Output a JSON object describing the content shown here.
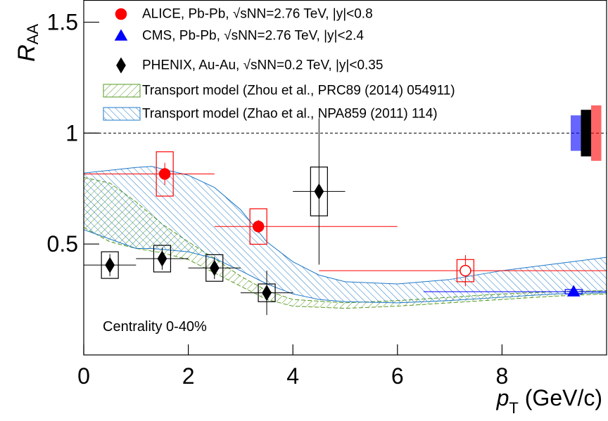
{
  "chart_data": {
    "type": "scatter",
    "x_label": {
      "text": "p",
      "subscript": "T",
      "suffix": " (GeV/c)"
    },
    "y_label": {
      "text": "R",
      "subscript": "AA"
    },
    "xlim": [
      0,
      10
    ],
    "ylim": [
      0,
      1.6
    ],
    "xticks": [
      0,
      2,
      4,
      6,
      8
    ],
    "yticks": [
      0.5,
      1,
      1.5
    ],
    "reference_line": 1,
    "annotation": "Centrality 0-40%",
    "legend": "top-left",
    "series": [
      {
        "name": "ALICE, Pb-Pb, √sNN=2.76 TeV, |y|<0.8",
        "color": "#ff0000",
        "marker": "circle",
        "x": [
          1.55,
          3.34,
          7.3
        ],
        "values": [
          0.816,
          0.579,
          0.38
        ],
        "x_low": [
          0,
          2.5,
          4.5
        ],
        "x_high": [
          2.5,
          6,
          10
        ],
        "stat_err": [
          0.05,
          0.03,
          0.07
        ],
        "syst_err": [
          0.1,
          0.08,
          0.05
        ],
        "filled": [
          true,
          true,
          false
        ],
        "global_err": 0.125
      },
      {
        "name": "CMS, Pb-Pb, √sNN=2.76 TeV, |y|<2.4",
        "color": "#0000ff",
        "marker": "triangle",
        "x": [
          9.37
        ],
        "values": [
          0.285
        ],
        "x_low": [
          6.5
        ],
        "x_high": [
          10
        ],
        "stat_err": [
          0.02
        ],
        "syst_err": [
          0.01
        ],
        "filled": [
          true
        ],
        "global_err": 0.08
      },
      {
        "name": "PHENIX, Au-Au, √sNN=0.2 TeV, |y|<0.35",
        "color": "#000000",
        "marker": "diamond",
        "x": [
          0.5,
          1.5,
          2.5,
          3.5,
          4.5
        ],
        "values": [
          0.405,
          0.434,
          0.392,
          0.28,
          0.737
        ],
        "x_low": [
          0,
          1,
          2,
          3,
          4
        ],
        "x_high": [
          1,
          2,
          3,
          4,
          5
        ],
        "stat_err": [
          0.05,
          0.05,
          0.05,
          0.1,
          0.33
        ],
        "syst_err": [
          0.06,
          0.06,
          0.06,
          0.04,
          0.11
        ],
        "filled": [
          true,
          true,
          true,
          true,
          true
        ],
        "global_err": 0.105
      }
    ],
    "bands": [
      {
        "name": "Transport model (Zhou et al., PRC89 (2014) 054911)",
        "color": "#559922",
        "x": [
          0,
          0.5,
          1,
          1.5,
          2,
          2.5,
          3,
          3.5,
          4,
          5,
          6,
          7,
          8,
          9,
          10
        ],
        "upper": [
          0.8,
          0.775,
          0.69,
          0.59,
          0.51,
          0.435,
          0.355,
          0.29,
          0.25,
          0.235,
          0.245,
          0.26,
          0.275,
          0.285,
          0.29
        ],
        "lower": [
          0.575,
          0.51,
          0.48,
          0.46,
          0.43,
          0.37,
          0.31,
          0.25,
          0.22,
          0.21,
          0.22,
          0.235,
          0.25,
          0.265,
          0.275
        ]
      },
      {
        "name": "Transport model (Zhao et al., NPA859 (2011) 114)",
        "color": "#1f78c8",
        "x": [
          0,
          1,
          1.3,
          2,
          2.5,
          3,
          3.5,
          4,
          4.5,
          5,
          6,
          7,
          8,
          9,
          10
        ],
        "upper": [
          0.82,
          0.845,
          0.85,
          0.81,
          0.755,
          0.655,
          0.51,
          0.42,
          0.36,
          0.33,
          0.32,
          0.34,
          0.38,
          0.41,
          0.44
        ],
        "lower": [
          0.565,
          0.48,
          0.48,
          0.465,
          0.435,
          0.38,
          0.32,
          0.275,
          0.25,
          0.24,
          0.235,
          0.245,
          0.26,
          0.275,
          0.28
        ]
      }
    ]
  }
}
